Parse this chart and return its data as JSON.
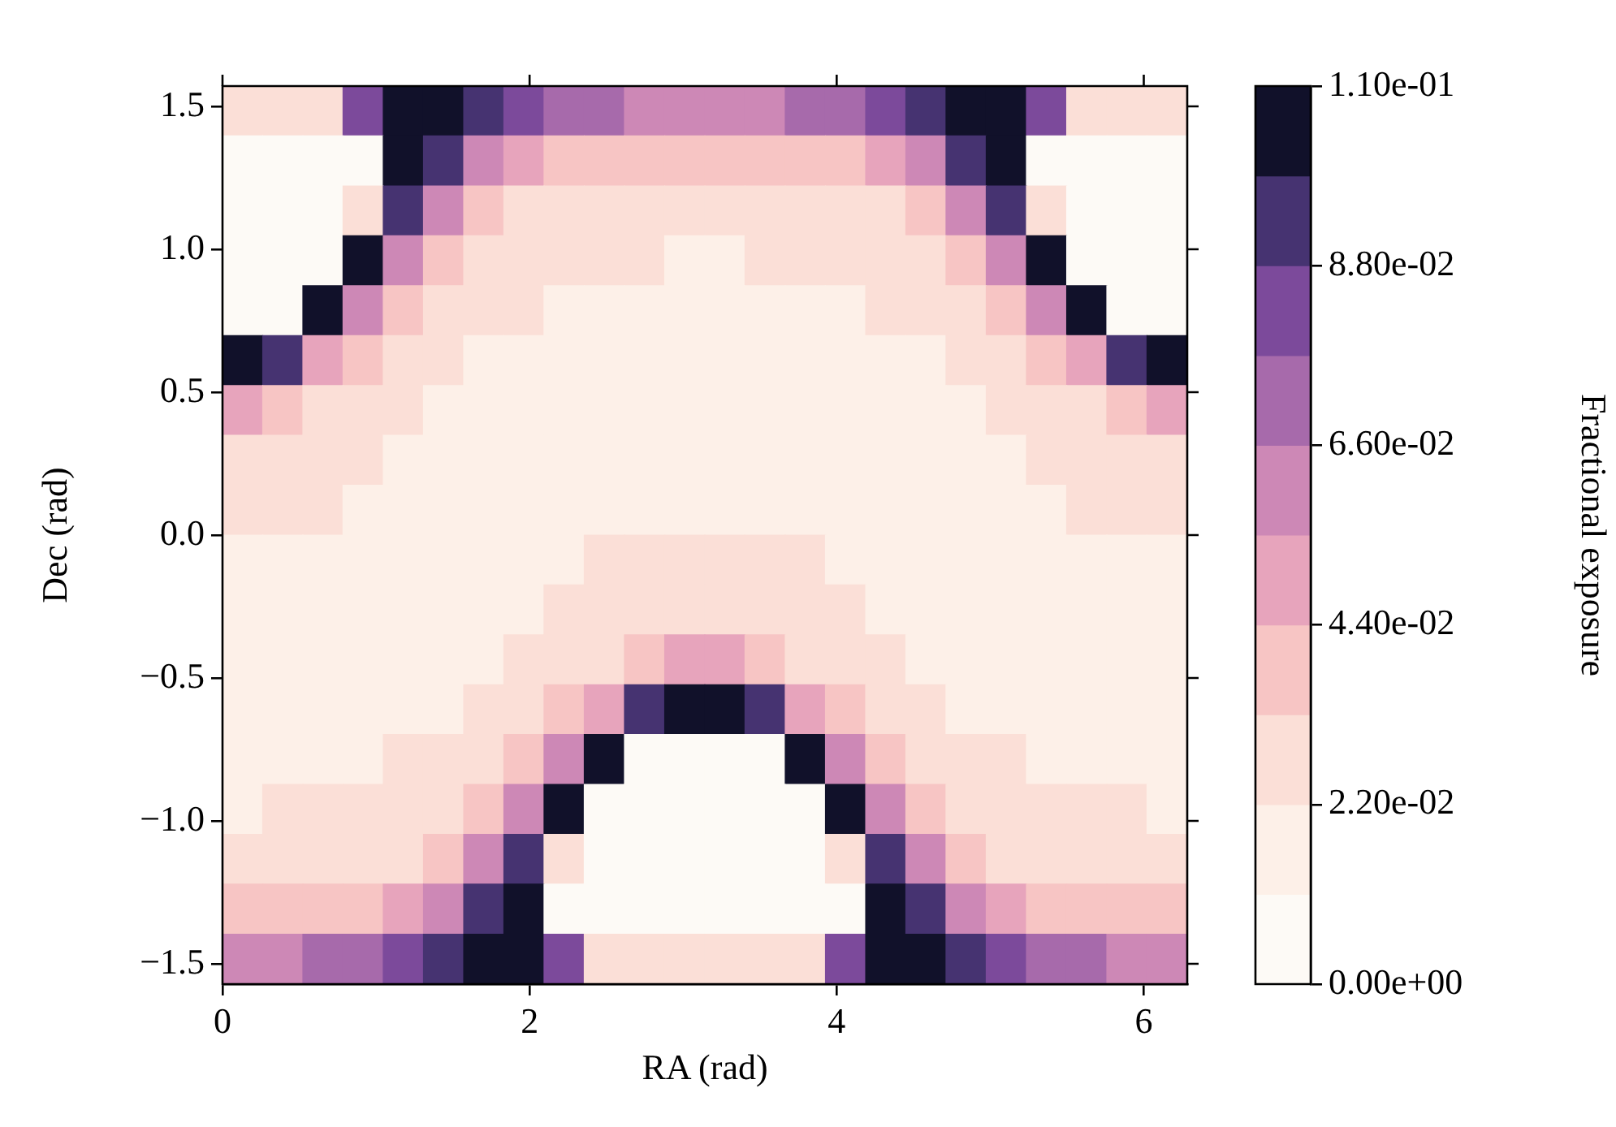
{
  "chart_data": {
    "type": "heatmap",
    "xlabel": "RA (rad)",
    "ylabel": "Dec (rad)",
    "clabel": "Fractional exposure",
    "x": [
      0.131,
      0.393,
      0.654,
      0.916,
      1.178,
      1.44,
      1.702,
      1.963,
      2.225,
      2.487,
      2.749,
      3.011,
      3.272,
      3.534,
      3.796,
      4.058,
      4.32,
      4.581,
      4.843,
      5.105,
      5.367,
      5.629,
      5.89,
      6.152
    ],
    "y": [
      1.484,
      1.309,
      1.134,
      0.96,
      0.785,
      0.611,
      0.436,
      0.262,
      0.087,
      -0.087,
      -0.262,
      -0.436,
      -0.611,
      -0.785,
      -0.96,
      -1.134,
      -1.309,
      -1.484
    ],
    "xlim": [
      0,
      6.283
    ],
    "ylim": [
      -1.571,
      1.571
    ],
    "xticks": [
      0,
      2,
      4,
      6
    ],
    "yticks": [
      {
        "value": -1.5,
        "label": "−1.5"
      },
      {
        "value": -1.0,
        "label": "−1.0"
      },
      {
        "value": -0.5,
        "label": "−0.5"
      },
      {
        "value": 0,
        "label": "0.0"
      },
      {
        "value": 0.5,
        "label": "0.5"
      },
      {
        "value": 1.0,
        "label": "1.0"
      },
      {
        "value": 1.5,
        "label": "1.5"
      }
    ],
    "clim": [
      0,
      0.11
    ],
    "cticks": [
      {
        "value": 0,
        "label": "0.00e+00"
      },
      {
        "value": 0.022,
        "label": "2.20e-02"
      },
      {
        "value": 0.044,
        "label": "4.40e-02"
      },
      {
        "value": 0.066,
        "label": "6.60e-02"
      },
      {
        "value": 0.088,
        "label": "8.80e-02"
      },
      {
        "value": 0.11,
        "label": "1.10e-01"
      }
    ],
    "colors": [
      "#fdfaf6",
      "#fdf0e8",
      "#fbdfd7",
      "#f7c5c4",
      "#e7a4bc",
      "#cd88b6",
      "#a76aab",
      "#7c4a9b",
      "#463371",
      "#11112a"
    ],
    "cells": [
      [
        0.027,
        0.027,
        0.027,
        0.082,
        0.104,
        0.104,
        0.093,
        0.082,
        0.071,
        0.071,
        0.06,
        0.06,
        0.06,
        0.06,
        0.071,
        0.071,
        0.082,
        0.093,
        0.104,
        0.104,
        0.082,
        0.027,
        0.027,
        0.027
      ],
      [
        0.005,
        0.005,
        0.005,
        0.005,
        0.104,
        0.093,
        0.06,
        0.049,
        0.038,
        0.038,
        0.038,
        0.038,
        0.038,
        0.038,
        0.038,
        0.038,
        0.049,
        0.06,
        0.093,
        0.104,
        0.005,
        0.005,
        0.005,
        0.005
      ],
      [
        0.005,
        0.005,
        0.005,
        0.027,
        0.093,
        0.06,
        0.038,
        0.027,
        0.027,
        0.027,
        0.027,
        0.027,
        0.027,
        0.027,
        0.027,
        0.027,
        0.027,
        0.038,
        0.06,
        0.093,
        0.027,
        0.005,
        0.005,
        0.005
      ],
      [
        0.005,
        0.005,
        0.005,
        0.104,
        0.06,
        0.038,
        0.027,
        0.027,
        0.027,
        0.027,
        0.027,
        0.016,
        0.016,
        0.027,
        0.027,
        0.027,
        0.027,
        0.027,
        0.038,
        0.06,
        0.104,
        0.005,
        0.005,
        0.005
      ],
      [
        0.005,
        0.005,
        0.104,
        0.06,
        0.038,
        0.027,
        0.027,
        0.027,
        0.016,
        0.016,
        0.016,
        0.016,
        0.016,
        0.016,
        0.016,
        0.016,
        0.027,
        0.027,
        0.027,
        0.038,
        0.06,
        0.104,
        0.005,
        0.005
      ],
      [
        0.104,
        0.093,
        0.049,
        0.038,
        0.027,
        0.027,
        0.016,
        0.016,
        0.016,
        0.016,
        0.016,
        0.016,
        0.016,
        0.016,
        0.016,
        0.016,
        0.016,
        0.016,
        0.027,
        0.027,
        0.038,
        0.049,
        0.093,
        0.104
      ],
      [
        0.049,
        0.038,
        0.027,
        0.027,
        0.027,
        0.016,
        0.016,
        0.016,
        0.016,
        0.016,
        0.016,
        0.016,
        0.016,
        0.016,
        0.016,
        0.016,
        0.016,
        0.016,
        0.016,
        0.027,
        0.027,
        0.027,
        0.038,
        0.049
      ],
      [
        0.027,
        0.027,
        0.027,
        0.027,
        0.016,
        0.016,
        0.016,
        0.016,
        0.016,
        0.016,
        0.016,
        0.016,
        0.016,
        0.016,
        0.016,
        0.016,
        0.016,
        0.016,
        0.016,
        0.016,
        0.027,
        0.027,
        0.027,
        0.027
      ],
      [
        0.027,
        0.027,
        0.027,
        0.016,
        0.016,
        0.016,
        0.016,
        0.016,
        0.016,
        0.016,
        0.016,
        0.016,
        0.016,
        0.016,
        0.016,
        0.016,
        0.016,
        0.016,
        0.016,
        0.016,
        0.016,
        0.027,
        0.027,
        0.027
      ],
      [
        0.016,
        0.016,
        0.016,
        0.016,
        0.016,
        0.016,
        0.016,
        0.016,
        0.016,
        0.027,
        0.027,
        0.027,
        0.027,
        0.027,
        0.027,
        0.016,
        0.016,
        0.016,
        0.016,
        0.016,
        0.016,
        0.016,
        0.016,
        0.016
      ],
      [
        0.016,
        0.016,
        0.016,
        0.016,
        0.016,
        0.016,
        0.016,
        0.016,
        0.027,
        0.027,
        0.027,
        0.027,
        0.027,
        0.027,
        0.027,
        0.027,
        0.016,
        0.016,
        0.016,
        0.016,
        0.016,
        0.016,
        0.016,
        0.016
      ],
      [
        0.016,
        0.016,
        0.016,
        0.016,
        0.016,
        0.016,
        0.016,
        0.027,
        0.027,
        0.027,
        0.038,
        0.049,
        0.049,
        0.038,
        0.027,
        0.027,
        0.027,
        0.016,
        0.016,
        0.016,
        0.016,
        0.016,
        0.016,
        0.016
      ],
      [
        0.016,
        0.016,
        0.016,
        0.016,
        0.016,
        0.016,
        0.027,
        0.027,
        0.038,
        0.049,
        0.093,
        0.104,
        0.104,
        0.093,
        0.049,
        0.038,
        0.027,
        0.027,
        0.016,
        0.016,
        0.016,
        0.016,
        0.016,
        0.016
      ],
      [
        0.016,
        0.016,
        0.016,
        0.016,
        0.027,
        0.027,
        0.027,
        0.038,
        0.06,
        0.104,
        0.005,
        0.005,
        0.005,
        0.005,
        0.104,
        0.06,
        0.038,
        0.027,
        0.027,
        0.027,
        0.016,
        0.016,
        0.016,
        0.016
      ],
      [
        0.016,
        0.027,
        0.027,
        0.027,
        0.027,
        0.027,
        0.038,
        0.06,
        0.104,
        0.005,
        0.005,
        0.005,
        0.005,
        0.005,
        0.005,
        0.104,
        0.06,
        0.038,
        0.027,
        0.027,
        0.027,
        0.027,
        0.027,
        0.016
      ],
      [
        0.027,
        0.027,
        0.027,
        0.027,
        0.027,
        0.038,
        0.06,
        0.093,
        0.027,
        0.005,
        0.005,
        0.005,
        0.005,
        0.005,
        0.005,
        0.027,
        0.093,
        0.06,
        0.038,
        0.027,
        0.027,
        0.027,
        0.027,
        0.027
      ],
      [
        0.038,
        0.038,
        0.038,
        0.038,
        0.049,
        0.06,
        0.093,
        0.104,
        0.005,
        0.005,
        0.005,
        0.005,
        0.005,
        0.005,
        0.005,
        0.005,
        0.104,
        0.093,
        0.06,
        0.049,
        0.038,
        0.038,
        0.038,
        0.038
      ],
      [
        0.06,
        0.06,
        0.071,
        0.071,
        0.082,
        0.093,
        0.104,
        0.104,
        0.082,
        0.027,
        0.027,
        0.027,
        0.027,
        0.027,
        0.027,
        0.082,
        0.104,
        0.104,
        0.093,
        0.082,
        0.071,
        0.071,
        0.06,
        0.06
      ]
    ]
  }
}
